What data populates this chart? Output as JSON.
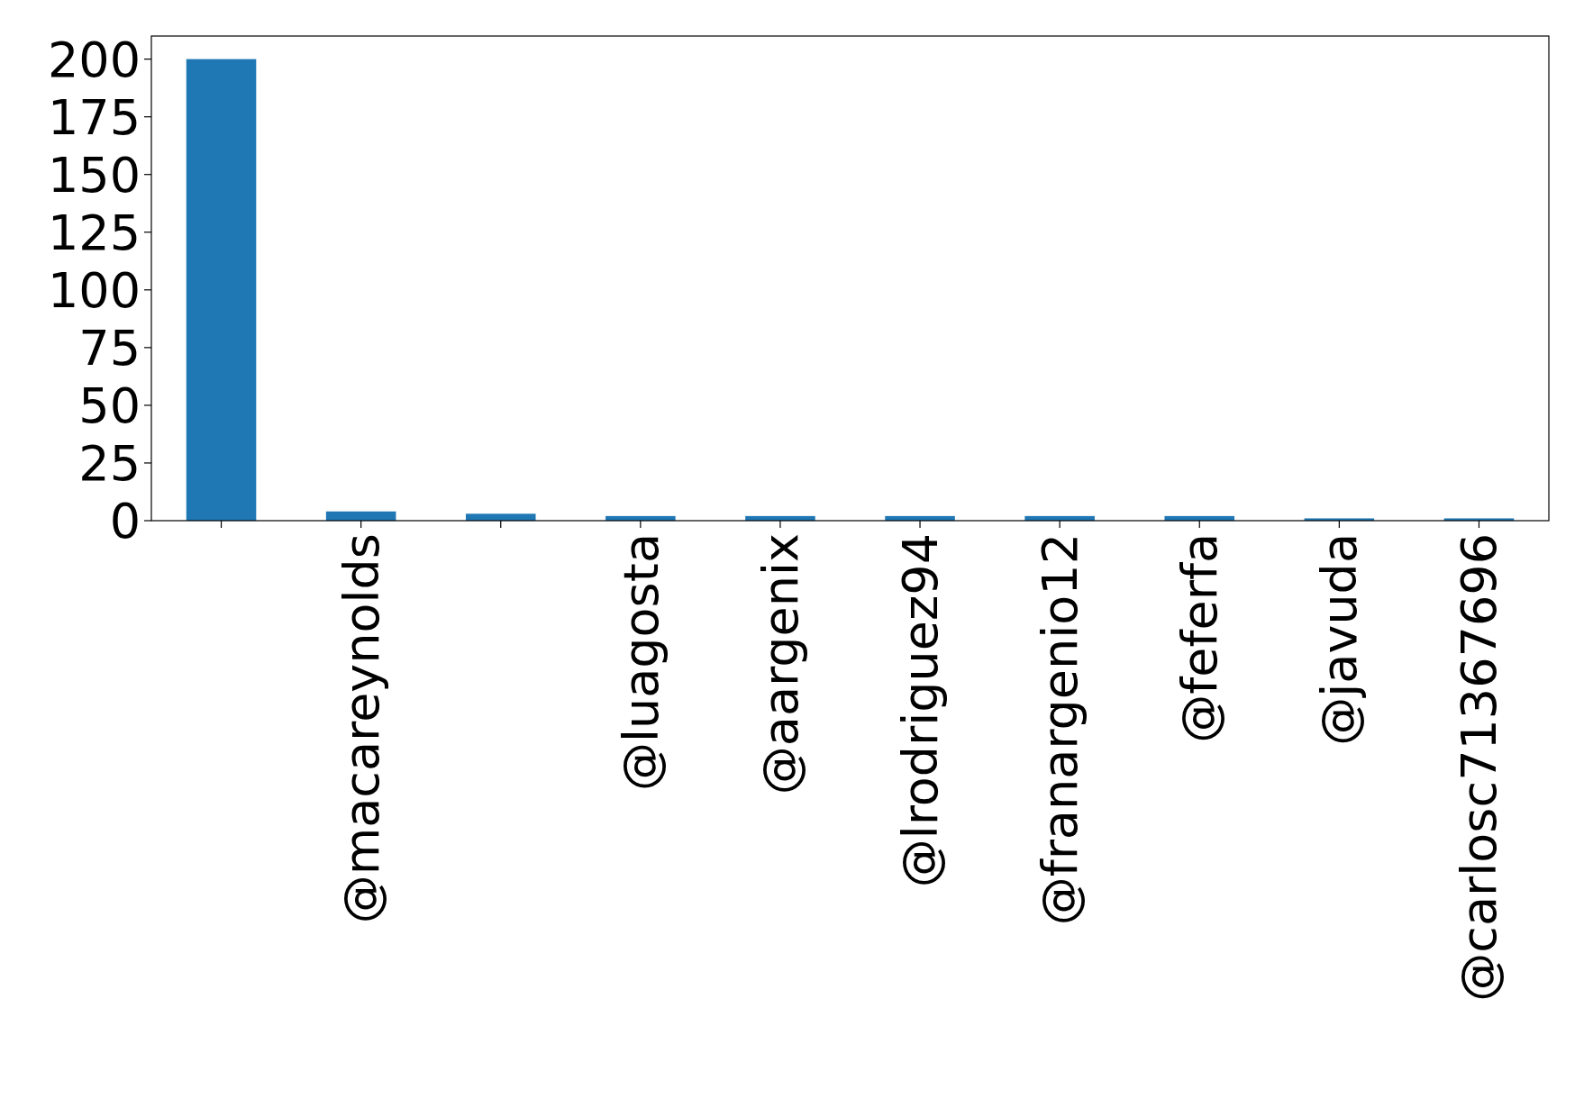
{
  "chart_data": {
    "type": "bar",
    "categories": [
      null,
      "@macareynolds",
      null,
      "@luagosta",
      "@aargenix",
      "@lrodriguez94",
      "@franargenio12",
      "@feferfa",
      "@javuda",
      "@carlosc71367696"
    ],
    "values": [
      200,
      4,
      3,
      2,
      2,
      2,
      2,
      2,
      1,
      1
    ],
    "color": "#1f77b4",
    "ylim": [
      0,
      210
    ],
    "yticks": [
      0,
      25,
      50,
      75,
      100,
      125,
      150,
      175,
      200
    ],
    "grid": false
  }
}
